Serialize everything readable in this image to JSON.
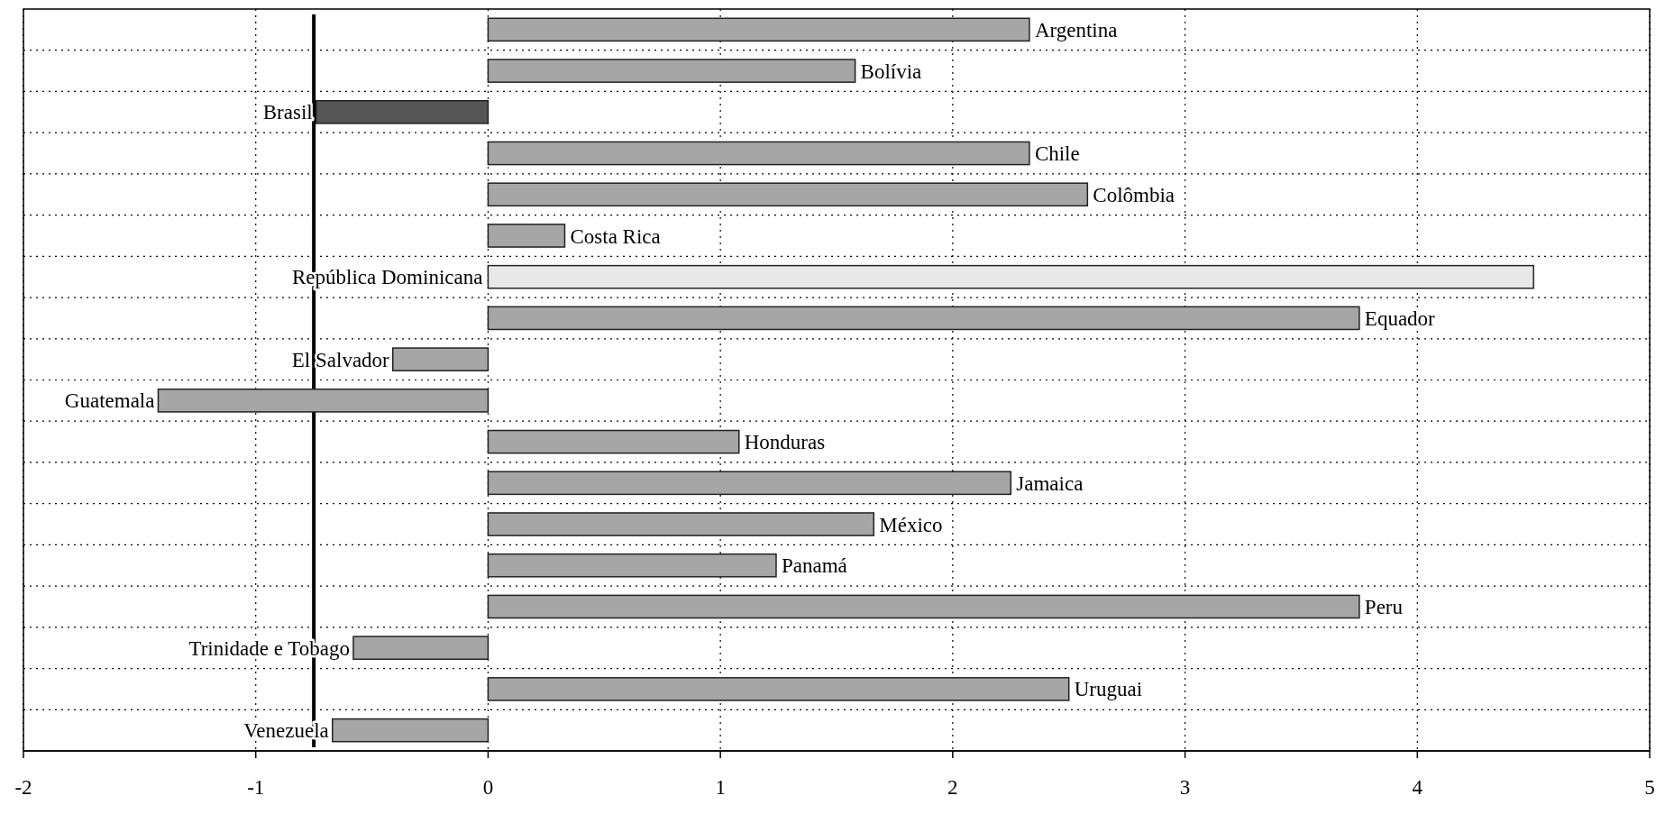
{
  "chart_data": {
    "type": "bar",
    "orientation": "horizontal",
    "categories": [
      "Argentina",
      "Bolívia",
      "Brasil",
      "Chile",
      "Colômbia",
      "Costa Rica",
      "República Dominicana",
      "Equador",
      "El Salvador",
      "Guatemala",
      "Honduras",
      "Jamaica",
      "México",
      "Panamá",
      "Peru",
      "Trinidade e Tobago",
      "Uruguai",
      "Venezuela"
    ],
    "values": [
      2.33,
      1.58,
      -0.74,
      2.33,
      2.58,
      0.33,
      4.5,
      3.75,
      -0.41,
      -1.42,
      1.08,
      2.25,
      1.66,
      1.24,
      3.75,
      -0.58,
      2.5,
      -0.67
    ],
    "colors": [
      "#a6a6a6",
      "#a6a6a6",
      "#555555",
      "#a6a6a6",
      "#a6a6a6",
      "#a6a6a6",
      "#e8e8e8",
      "#a6a6a6",
      "#a6a6a6",
      "#a6a6a6",
      "#a6a6a6",
      "#a6a6a6",
      "#a6a6a6",
      "#a6a6a6",
      "#a6a6a6",
      "#a6a6a6",
      "#a6a6a6",
      "#a6a6a6"
    ],
    "xlim": [
      -2,
      5
    ],
    "xticks": [
      -2,
      -1,
      0,
      1,
      2,
      3,
      4,
      5
    ],
    "grid": true,
    "ref_lines": [
      {
        "axis": "x",
        "value": -0.75,
        "color": "#000000"
      }
    ]
  }
}
